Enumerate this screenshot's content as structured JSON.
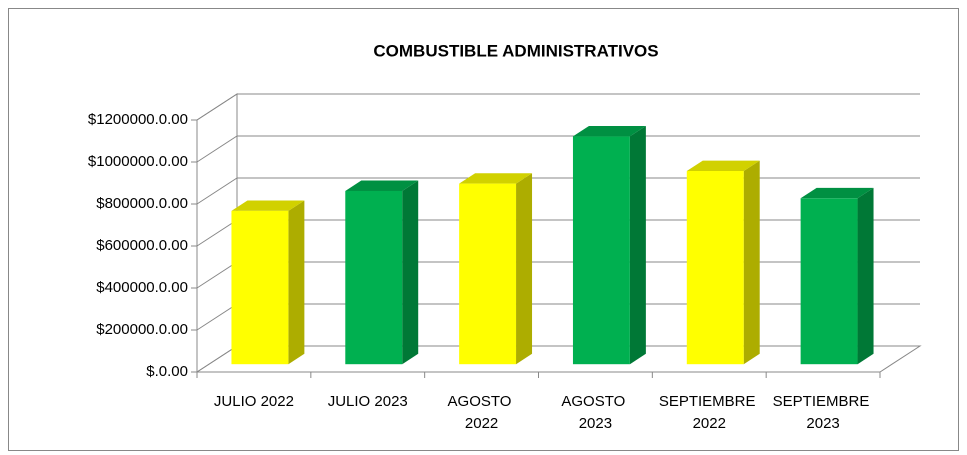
{
  "chart_data": {
    "type": "bar3d",
    "title": "COMBUSTIBLE ADMINISTRATIVOS",
    "categories": [
      "JULIO 2022",
      "JULIO 2023",
      "AGOSTO 2022",
      "AGOSTO 2023",
      "SEPTIEMBRE 2022",
      "SEPTIEMBRE 2023"
    ],
    "values": [
      730000,
      825000,
      860000,
      1085000,
      920000,
      790000
    ],
    "colors": [
      "#ffff00",
      "#00b050",
      "#ffff00",
      "#00b050",
      "#ffff00",
      "#00b050"
    ],
    "ylim": [
      0,
      1200000
    ],
    "yticks": [
      {
        "value": 0,
        "label": "$.0.00"
      },
      {
        "value": 200000,
        "label": "$200000.0.00"
      },
      {
        "value": 400000,
        "label": "$400000.0.00"
      },
      {
        "value": 600000,
        "label": "$600000.0.00"
      },
      {
        "value": 800000,
        "label": "$800000.0.00"
      },
      {
        "value": 1000000,
        "label": "$1000000.0.00"
      },
      {
        "value": 1200000,
        "label": "$1200000.0.00"
      }
    ],
    "grid": true
  }
}
